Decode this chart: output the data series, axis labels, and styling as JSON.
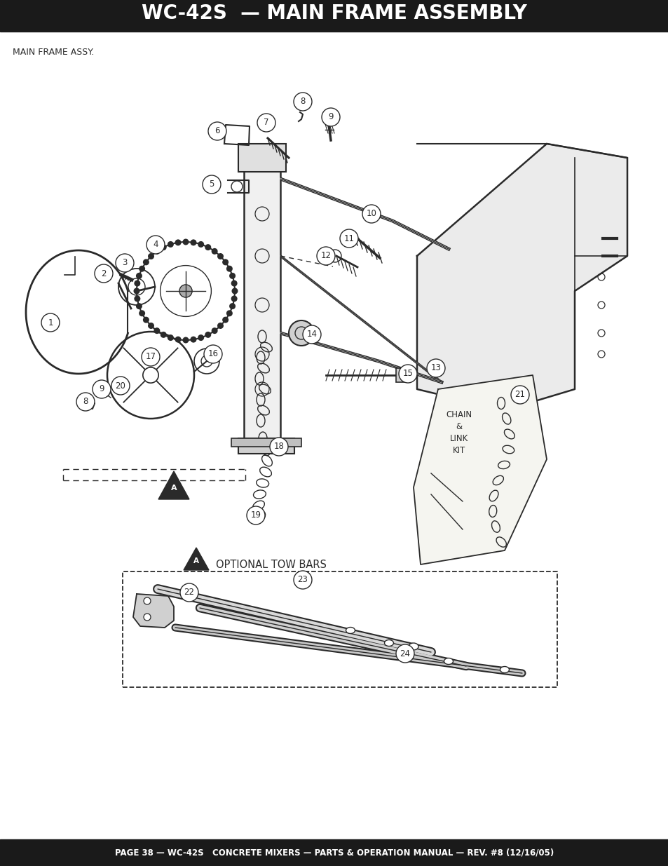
{
  "title": "WC-42S  — MAIN FRAME ASSEMBLY",
  "subtitle": "MAIN FRAME ASSY.",
  "footer": "PAGE 38 — WC-42S   CONCRETE MIXERS — PARTS & OPERATION MANUAL — REV. #8 (12/16/05)",
  "header_bg": "#1a1a1a",
  "footer_bg": "#1a1a1a",
  "header_text_color": "#ffffff",
  "footer_text_color": "#ffffff",
  "bg_color": "#ffffff",
  "line_color": "#2a2a2a",
  "optional_tow_label": "OPTIONAL TOW BARS",
  "chain_kit_label": "CHAIN\n&\nLINK\nKIT"
}
